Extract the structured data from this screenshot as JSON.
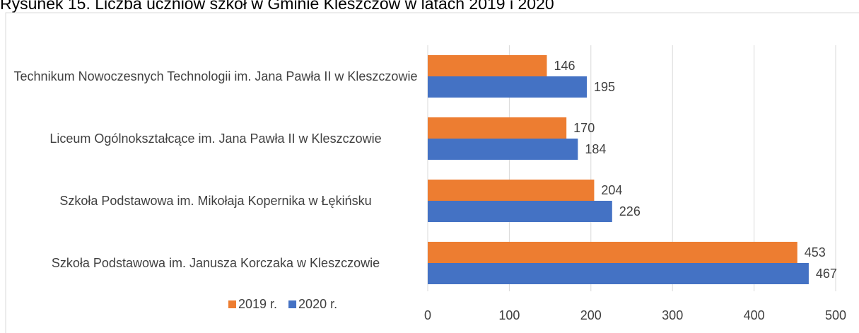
{
  "chart_data": {
    "type": "bar",
    "orientation": "horizontal",
    "title": "Rysunek 15. Liczba uczniów szkół w Gminie Kleszczów w latach 2019 i 2020",
    "categories": [
      "Technikum Nowoczesnych Technologii im. Jana Pawła II w Kleszczowie",
      "Liceum Ogólnokształcące im. Jana Pawła II w Kleszczowie",
      "Szkoła Podstawowa im. Mikołaja Kopernika w Łękińsku",
      "Szkoła Podstawowa im. Janusza Korczaka w Kleszczowie"
    ],
    "series": [
      {
        "name": "2019 r.",
        "color": "#ED7D31",
        "values": [
          146,
          170,
          204,
          453
        ]
      },
      {
        "name": "2020 r.",
        "color": "#4472C4",
        "values": [
          195,
          184,
          226,
          467
        ]
      }
    ],
    "xlim": [
      0,
      500
    ],
    "xticks": [
      0,
      100,
      200,
      300,
      400,
      500
    ],
    "grid": true,
    "legend": "bottom-left"
  }
}
